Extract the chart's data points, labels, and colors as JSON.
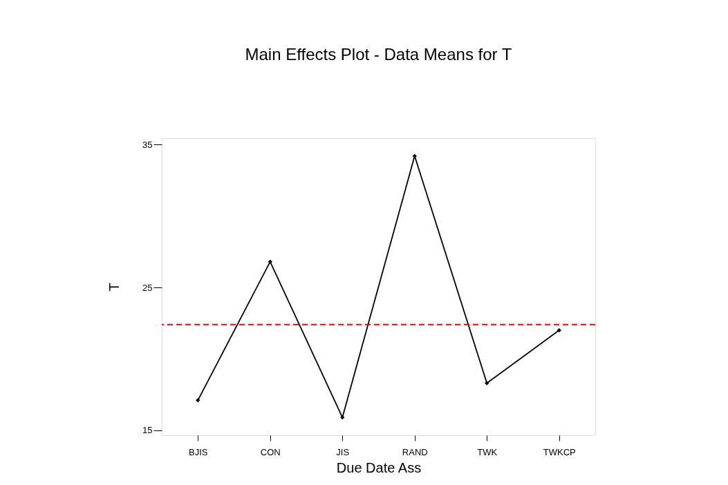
{
  "chart_data": {
    "type": "line",
    "title": "Main Effects Plot - Data Means for T",
    "xlabel": "Due Date Ass",
    "ylabel": "T",
    "categories": [
      "BJIS",
      "CON",
      "JIS",
      "RAND",
      "TWK",
      "TWKCP"
    ],
    "series": [
      {
        "color": "#000000",
        "values": [
          17.1,
          26.8,
          15.9,
          34.2,
          18.3,
          22.0
        ]
      }
    ],
    "ylim": [
      14.65,
      35.45
    ],
    "yticks": [
      15,
      25,
      35
    ],
    "marker": "diamond",
    "line_style": "solid",
    "grid": false,
    "ref_lines": [
      {
        "axis": "y",
        "value": 22.4,
        "color": "#ff0000",
        "line_style": "dashed"
      }
    ]
  }
}
